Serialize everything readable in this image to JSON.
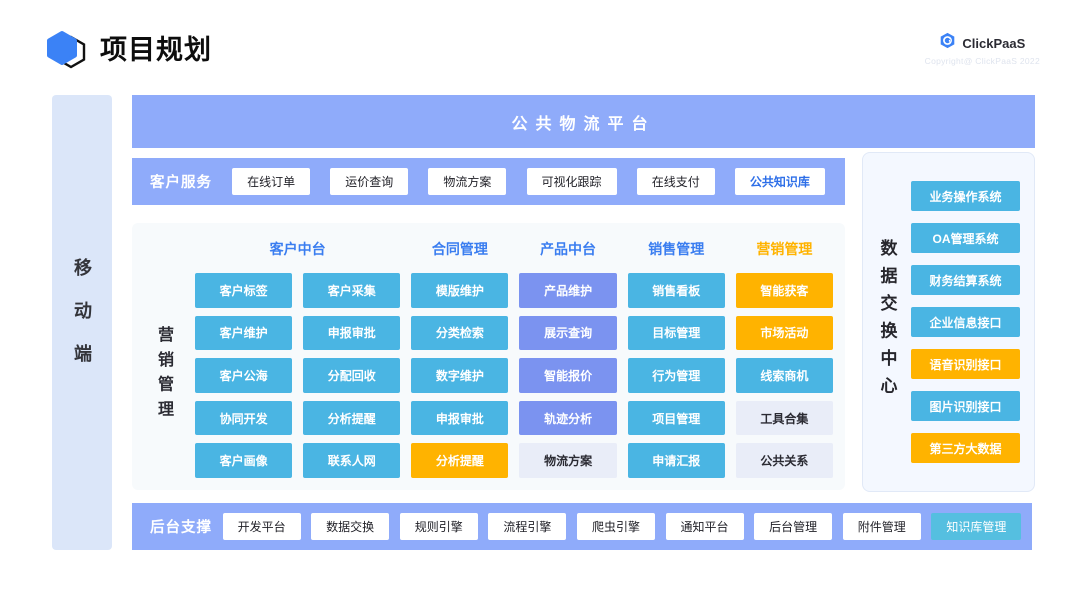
{
  "header": {
    "title": "项目规划",
    "brand": "ClickPaaS",
    "copyright": "Copyright@ ClickPaaS 2022"
  },
  "colors": {
    "periwinkle_band": "#8fabfa",
    "sky_button": "#4ab5e3",
    "periwinkle_button": "#7b93f0",
    "yellow_button": "#ffb300",
    "gray_button": "#e9edf8",
    "cyan_button": "#55bfe0",
    "header_blue_text": "#3a7df0",
    "link_blue_text": "#2e6fe8",
    "left_bar_bg": "#dbe6f9",
    "panel_bg": "#f7fafc",
    "right_panel_bg": "#f4f8ff",
    "logo_blue": "#3b82f6"
  },
  "left_bar": {
    "label": "移动端"
  },
  "banner": {
    "label": "公共物流平台"
  },
  "customer_service": {
    "label": "客户服务",
    "items": [
      {
        "label": "在线订单",
        "style": "white"
      },
      {
        "label": "运价查询",
        "style": "white"
      },
      {
        "label": "物流方案",
        "style": "white"
      },
      {
        "label": "可视化跟踪",
        "style": "white"
      },
      {
        "label": "在线支付",
        "style": "white"
      },
      {
        "label": "公共知识库",
        "style": "white-blue"
      }
    ]
  },
  "matrix": {
    "side_label": "营销管理",
    "headers": [
      {
        "label": "客户中台",
        "color": "blue",
        "span": 2
      },
      {
        "label": "合同管理",
        "color": "blue",
        "span": 1
      },
      {
        "label": "产品中台",
        "color": "blue",
        "span": 1
      },
      {
        "label": "销售管理",
        "color": "blue",
        "span": 1
      },
      {
        "label": "营销管理",
        "color": "yellow",
        "span": 1
      }
    ],
    "rows": [
      [
        {
          "label": "客户标签",
          "style": "sky"
        },
        {
          "label": "客户采集",
          "style": "sky"
        },
        {
          "label": "模版维护",
          "style": "sky"
        },
        {
          "label": "产品维护",
          "style": "peri"
        },
        {
          "label": "销售看板",
          "style": "sky"
        },
        {
          "label": "智能获客",
          "style": "yellow"
        }
      ],
      [
        {
          "label": "客户维护",
          "style": "sky"
        },
        {
          "label": "申报审批",
          "style": "sky"
        },
        {
          "label": "分类检索",
          "style": "sky"
        },
        {
          "label": "展示查询",
          "style": "peri"
        },
        {
          "label": "目标管理",
          "style": "sky"
        },
        {
          "label": "市场活动",
          "style": "yellow"
        }
      ],
      [
        {
          "label": "客户公海",
          "style": "sky"
        },
        {
          "label": "分配回收",
          "style": "sky"
        },
        {
          "label": "数字维护",
          "style": "sky"
        },
        {
          "label": "智能报价",
          "style": "peri"
        },
        {
          "label": "行为管理",
          "style": "sky"
        },
        {
          "label": "线索商机",
          "style": "sky"
        }
      ],
      [
        {
          "label": "协同开发",
          "style": "sky"
        },
        {
          "label": "分析提醒",
          "style": "sky"
        },
        {
          "label": "申报审批",
          "style": "sky"
        },
        {
          "label": "轨迹分析",
          "style": "peri"
        },
        {
          "label": "项目管理",
          "style": "sky"
        },
        {
          "label": "工具合集",
          "style": "gray"
        }
      ],
      [
        {
          "label": "客户画像",
          "style": "sky"
        },
        {
          "label": "联系人网",
          "style": "sky"
        },
        {
          "label": "分析提醒",
          "style": "yellow"
        },
        {
          "label": "物流方案",
          "style": "gray"
        },
        {
          "label": "申请汇报",
          "style": "sky"
        },
        {
          "label": "公共关系",
          "style": "gray"
        }
      ]
    ]
  },
  "data_exchange": {
    "side_label": "数据交换中心",
    "items": [
      {
        "label": "业务操作系统",
        "style": "sky"
      },
      {
        "label": "OA管理系统",
        "style": "sky"
      },
      {
        "label": "财务结算系统",
        "style": "sky"
      },
      {
        "label": "企业信息接口",
        "style": "sky"
      },
      {
        "label": "语音识别接口",
        "style": "yellow"
      },
      {
        "label": "图片识别接口",
        "style": "sky"
      },
      {
        "label": "第三方大数据",
        "style": "yellow"
      }
    ]
  },
  "backend_support": {
    "label": "后台支撑",
    "items": [
      {
        "label": "开发平台",
        "style": "white"
      },
      {
        "label": "数据交换",
        "style": "white"
      },
      {
        "label": "规则引擎",
        "style": "white"
      },
      {
        "label": "流程引擎",
        "style": "white"
      },
      {
        "label": "爬虫引擎",
        "style": "white"
      },
      {
        "label": "通知平台",
        "style": "white"
      },
      {
        "label": "后台管理",
        "style": "white"
      },
      {
        "label": "附件管理",
        "style": "white"
      },
      {
        "label": "知识库管理",
        "style": "cyan"
      }
    ]
  }
}
